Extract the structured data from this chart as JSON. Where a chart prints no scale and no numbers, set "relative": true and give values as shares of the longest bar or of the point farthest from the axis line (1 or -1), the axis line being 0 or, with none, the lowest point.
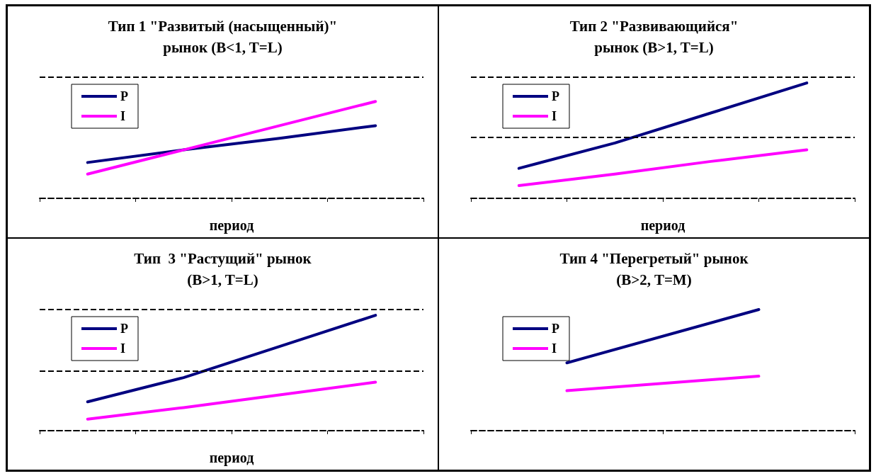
{
  "chart_data": [
    {
      "type": "line",
      "title": "Тип 1 \"Развитый (насыщенный)\"\nрынок (B<1, T=L)",
      "xlabel": "период",
      "relative": true,
      "categories": [
        null,
        null,
        null,
        null
      ],
      "ref_lines": [
        {
          "axis": "y",
          "value": 1.25,
          "line_style": "dashed",
          "color": "#000000"
        }
      ],
      "legend": "top left",
      "marker": "none",
      "line_style": "solid",
      "series": [
        {
          "name": "P",
          "color": "#000080",
          "values": [
            0.37,
            0.5,
            0.62,
            0.75
          ]
        },
        {
          "name": "I",
          "color": "#ff00ff",
          "values": [
            0.25,
            0.5,
            0.75,
            1
          ]
        }
      ]
    },
    {
      "type": "line",
      "title": "Тип 2 \"Развивающийся\"\nрынок (B>1, T=L)",
      "xlabel": "период",
      "relative": true,
      "categories": [
        null,
        null,
        null,
        null
      ],
      "ref_lines": [
        {
          "axis": "y",
          "value": 0.53,
          "line_style": "dashed",
          "color": "#000000"
        },
        {
          "axis": "y",
          "value": 1.05,
          "line_style": "dashed",
          "color": "#000000"
        }
      ],
      "legend": "top left",
      "marker": "none",
      "line_style": "solid",
      "series": [
        {
          "name": "P",
          "color": "#000080",
          "values": [
            0.26,
            0.48,
            0.74,
            1
          ]
        },
        {
          "name": "I",
          "color": "#ff00ff",
          "values": [
            0.11,
            0.21,
            0.32,
            0.42
          ]
        }
      ]
    },
    {
      "type": "line",
      "title": "Тип  3 \"Растущий\" рынок\n(B>1, T=L)",
      "xlabel": "период",
      "relative": true,
      "categories": [
        null,
        null,
        null,
        null
      ],
      "ref_lines": [
        {
          "axis": "y",
          "value": 0.52,
          "line_style": "dashed",
          "color": "#000000"
        },
        {
          "axis": "y",
          "value": 1.05,
          "line_style": "dashed",
          "color": "#000000"
        }
      ],
      "legend": "top left",
      "marker": "none",
      "line_style": "solid",
      "series": [
        {
          "name": "P",
          "color": "#000080",
          "values": [
            0.25,
            0.46,
            0.73,
            1
          ]
        },
        {
          "name": "I",
          "color": "#ff00ff",
          "values": [
            0.1,
            0.2,
            0.31,
            0.42
          ]
        }
      ]
    },
    {
      "type": "line",
      "title": "Тип 4 \"Перегретый\" рынок\n(B>2, T=M)",
      "relative": true,
      "categories": [
        null,
        null
      ],
      "legend": "top left",
      "marker": "none",
      "line_style": "solid",
      "series": [
        {
          "name": "P",
          "color": "#000080",
          "values": [
            0.56,
            1
          ]
        },
        {
          "name": "I",
          "color": "#ff00ff",
          "values": [
            0.33,
            0.45
          ]
        }
      ]
    }
  ]
}
